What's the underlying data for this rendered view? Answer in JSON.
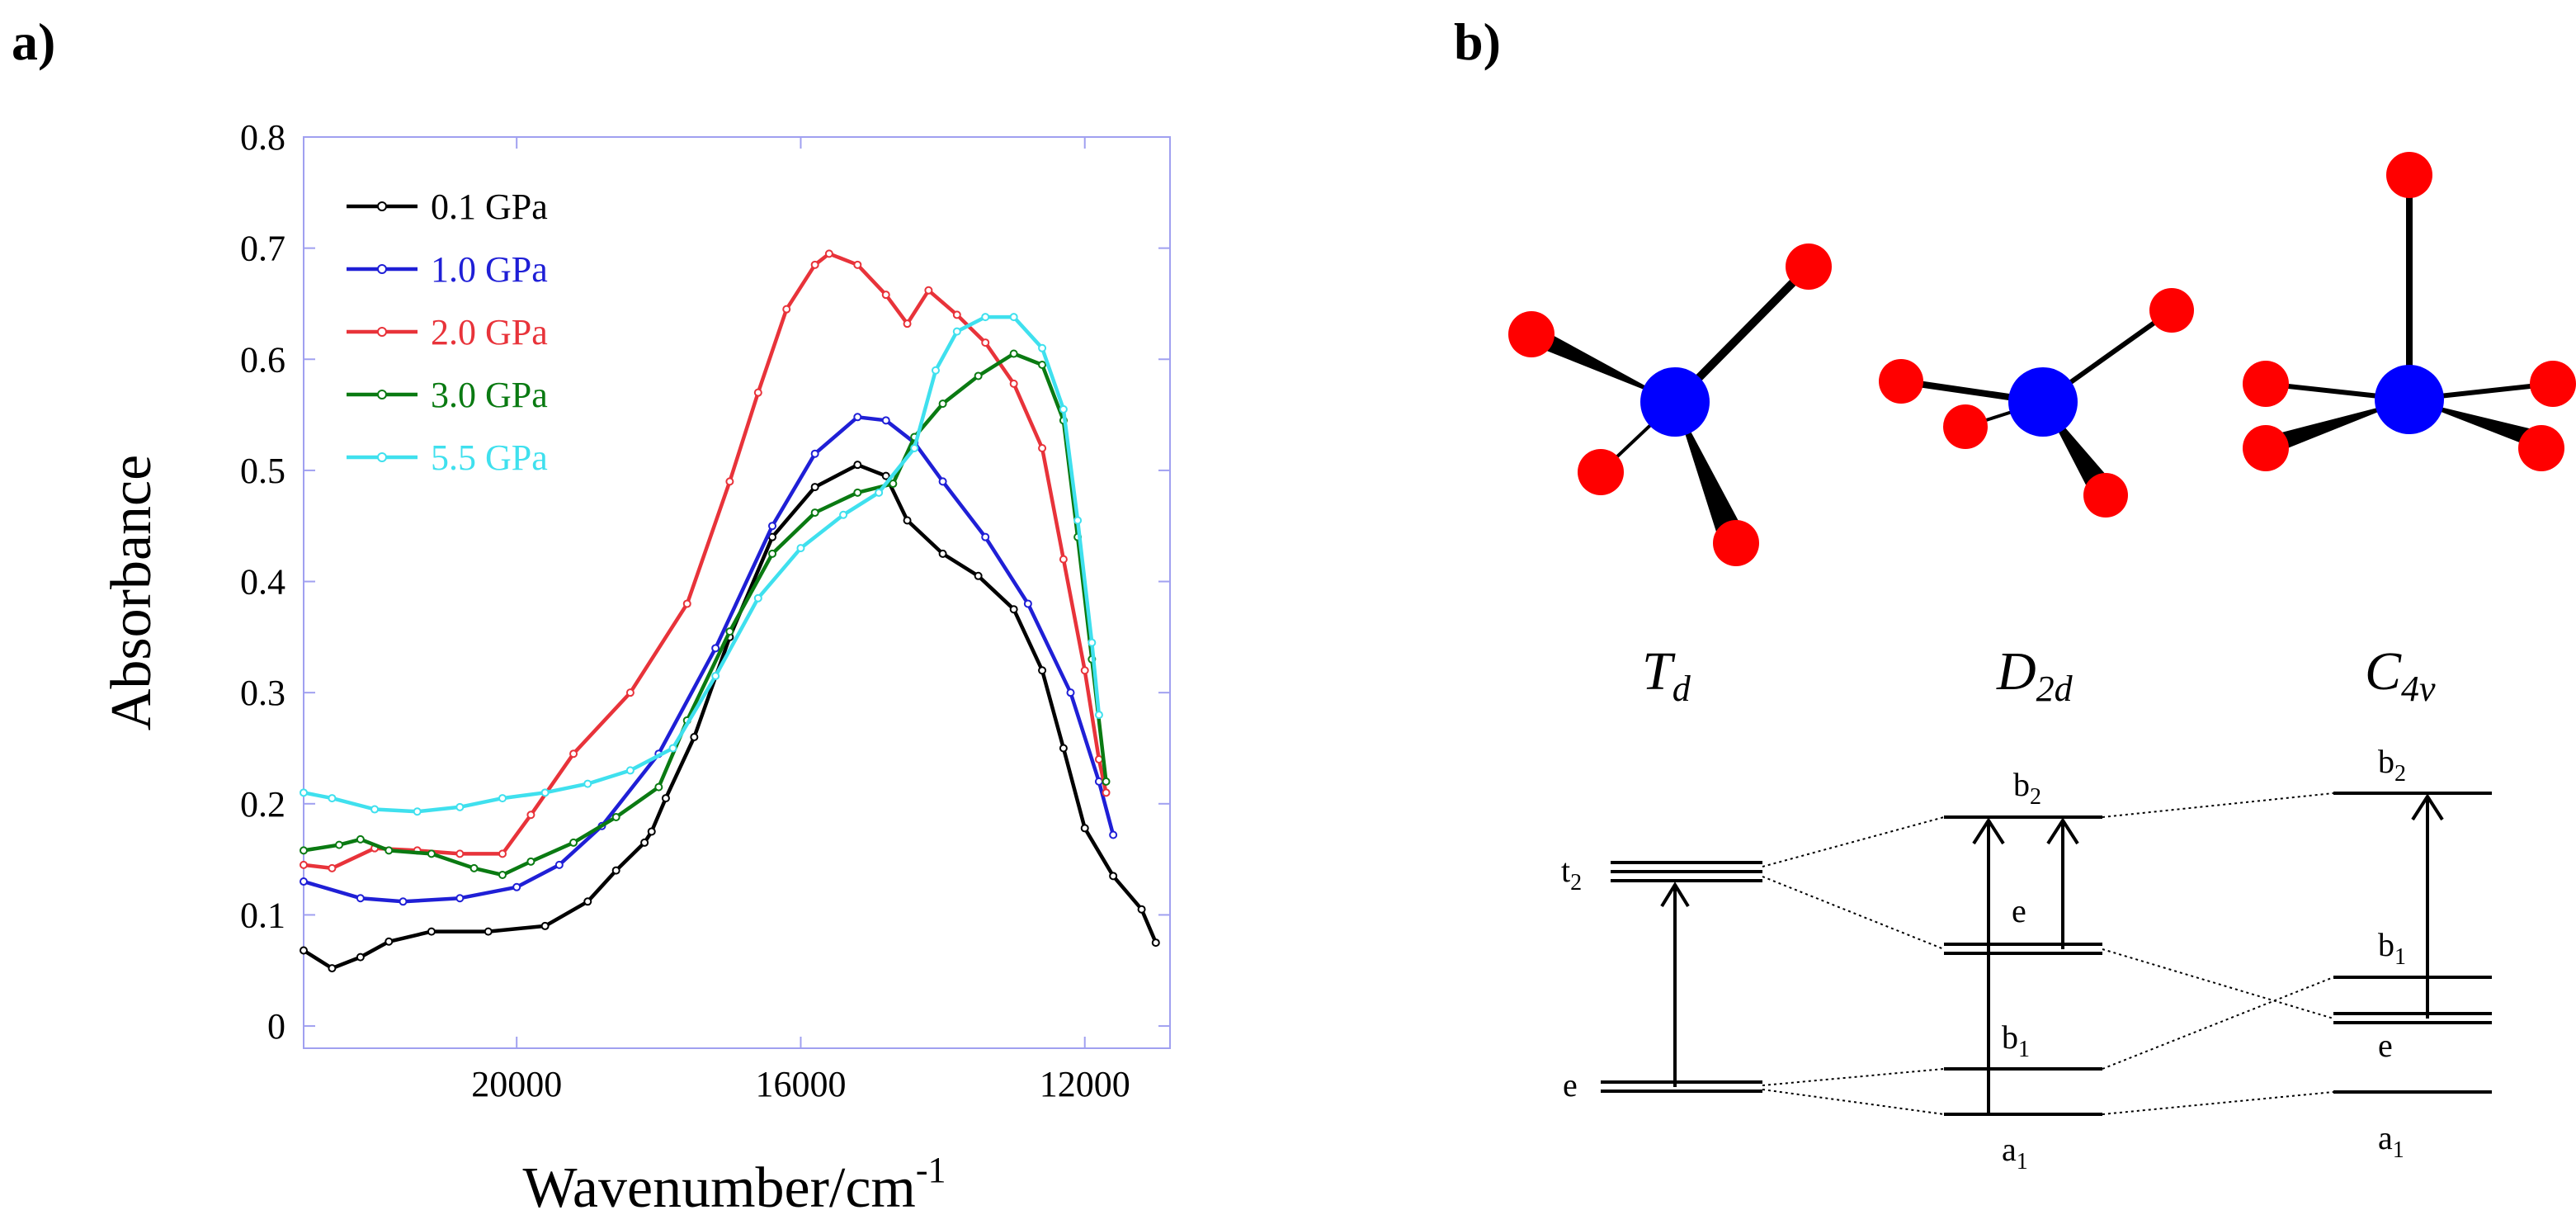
{
  "panel_a_label": "a)",
  "panel_b_label": "b)",
  "chart_data": {
    "type": "line",
    "xlabel": "Wavenumber/cm",
    "xlabel_sup": "-1",
    "ylabel": "Absorbance",
    "xlim": [
      23000,
      10800
    ],
    "ylim": [
      -0.02,
      0.8
    ],
    "x_ticks": [
      20000,
      16000,
      12000
    ],
    "x_tick_labels": [
      "20000",
      "16000",
      "12000"
    ],
    "y_ticks": [
      0,
      0.1,
      0.2,
      0.3,
      0.4,
      0.5,
      0.6,
      0.7,
      0.8
    ],
    "y_tick_labels": [
      "0",
      "0.1",
      "0.2",
      "0.3",
      "0.4",
      "0.5",
      "0.6",
      "0.7",
      "0.8"
    ],
    "legend_position": "top-left",
    "series": [
      {
        "name": "0.1 GPa",
        "color": "#000000",
        "points": [
          [
            23000,
            0.068
          ],
          [
            22600,
            0.052
          ],
          [
            22200,
            0.062
          ],
          [
            21800,
            0.076
          ],
          [
            21200,
            0.085
          ],
          [
            20400,
            0.085
          ],
          [
            19600,
            0.09
          ],
          [
            19000,
            0.112
          ],
          [
            18600,
            0.14
          ],
          [
            18200,
            0.165
          ],
          [
            18100,
            0.175
          ],
          [
            17900,
            0.205
          ],
          [
            17500,
            0.26
          ],
          [
            17000,
            0.35
          ],
          [
            16400,
            0.44
          ],
          [
            15800,
            0.485
          ],
          [
            15200,
            0.505
          ],
          [
            14800,
            0.495
          ],
          [
            14500,
            0.455
          ],
          [
            14000,
            0.425
          ],
          [
            13500,
            0.405
          ],
          [
            13000,
            0.375
          ],
          [
            12600,
            0.32
          ],
          [
            12300,
            0.25
          ],
          [
            12000,
            0.178
          ],
          [
            11600,
            0.135
          ],
          [
            11200,
            0.105
          ],
          [
            11000,
            0.075
          ]
        ]
      },
      {
        "name": "1.0 GPa",
        "color": "#1f1fd6",
        "points": [
          [
            23000,
            0.13
          ],
          [
            22200,
            0.115
          ],
          [
            21600,
            0.112
          ],
          [
            20800,
            0.115
          ],
          [
            20000,
            0.125
          ],
          [
            19400,
            0.145
          ],
          [
            18800,
            0.18
          ],
          [
            18000,
            0.245
          ],
          [
            17200,
            0.34
          ],
          [
            16400,
            0.45
          ],
          [
            15800,
            0.515
          ],
          [
            15200,
            0.548
          ],
          [
            14800,
            0.545
          ],
          [
            14400,
            0.525
          ],
          [
            14000,
            0.49
          ],
          [
            13400,
            0.44
          ],
          [
            12800,
            0.38
          ],
          [
            12200,
            0.3
          ],
          [
            11800,
            0.22
          ],
          [
            11600,
            0.172
          ]
        ]
      },
      {
        "name": "2.0 GPa",
        "color": "#e8333a",
        "points": [
          [
            23000,
            0.145
          ],
          [
            22600,
            0.142
          ],
          [
            22000,
            0.16
          ],
          [
            21400,
            0.158
          ],
          [
            20800,
            0.155
          ],
          [
            20200,
            0.155
          ],
          [
            19800,
            0.19
          ],
          [
            19200,
            0.245
          ],
          [
            18400,
            0.3
          ],
          [
            17600,
            0.38
          ],
          [
            17000,
            0.49
          ],
          [
            16600,
            0.57
          ],
          [
            16200,
            0.645
          ],
          [
            15800,
            0.685
          ],
          [
            15600,
            0.695
          ],
          [
            15200,
            0.685
          ],
          [
            14800,
            0.658
          ],
          [
            14500,
            0.632
          ],
          [
            14200,
            0.662
          ],
          [
            13800,
            0.64
          ],
          [
            13400,
            0.615
          ],
          [
            13000,
            0.578
          ],
          [
            12600,
            0.52
          ],
          [
            12300,
            0.42
          ],
          [
            12000,
            0.32
          ],
          [
            11800,
            0.24
          ],
          [
            11700,
            0.21
          ]
        ]
      },
      {
        "name": "3.0 GPa",
        "color": "#0a7a12",
        "points": [
          [
            23000,
            0.158
          ],
          [
            22500,
            0.163
          ],
          [
            22200,
            0.168
          ],
          [
            21800,
            0.158
          ],
          [
            21200,
            0.155
          ],
          [
            20600,
            0.142
          ],
          [
            20200,
            0.136
          ],
          [
            19800,
            0.148
          ],
          [
            19200,
            0.165
          ],
          [
            18600,
            0.188
          ],
          [
            18000,
            0.215
          ],
          [
            17600,
            0.275
          ],
          [
            17000,
            0.355
          ],
          [
            16400,
            0.425
          ],
          [
            15800,
            0.462
          ],
          [
            15200,
            0.48
          ],
          [
            14700,
            0.488
          ],
          [
            14400,
            0.53
          ],
          [
            14000,
            0.56
          ],
          [
            13500,
            0.585
          ],
          [
            13000,
            0.605
          ],
          [
            12600,
            0.595
          ],
          [
            12300,
            0.545
          ],
          [
            12100,
            0.44
          ],
          [
            11900,
            0.33
          ],
          [
            11700,
            0.22
          ]
        ]
      },
      {
        "name": "5.5 GPa",
        "color": "#3fe0ee",
        "points": [
          [
            23000,
            0.21
          ],
          [
            22600,
            0.205
          ],
          [
            22000,
            0.195
          ],
          [
            21400,
            0.193
          ],
          [
            20800,
            0.197
          ],
          [
            20200,
            0.205
          ],
          [
            19600,
            0.21
          ],
          [
            19000,
            0.218
          ],
          [
            18400,
            0.23
          ],
          [
            17800,
            0.25
          ],
          [
            17200,
            0.315
          ],
          [
            16600,
            0.385
          ],
          [
            16000,
            0.43
          ],
          [
            15400,
            0.46
          ],
          [
            14900,
            0.48
          ],
          [
            14400,
            0.52
          ],
          [
            14100,
            0.59
          ],
          [
            13800,
            0.625
          ],
          [
            13400,
            0.638
          ],
          [
            13000,
            0.638
          ],
          [
            12600,
            0.61
          ],
          [
            12300,
            0.555
          ],
          [
            12100,
            0.455
          ],
          [
            11900,
            0.345
          ],
          [
            11800,
            0.28
          ]
        ]
      }
    ]
  },
  "symmetry_labels": [
    {
      "main": "T",
      "sub": "d"
    },
    {
      "main": "D",
      "sub": "2d"
    },
    {
      "main": "C",
      "sub": "4v"
    }
  ],
  "energy_levels": {
    "t2": {
      "main": "t",
      "sub": "2"
    },
    "e_td": "e",
    "b2_d2d": {
      "main": "b",
      "sub": "2"
    },
    "e_d2d": "e",
    "b1_d2d": {
      "main": "b",
      "sub": "1"
    },
    "a1_d2d": {
      "main": "a",
      "sub": "1"
    },
    "b2_c4v": {
      "main": "b",
      "sub": "2"
    },
    "b1_c4v": {
      "main": "b",
      "sub": "1"
    },
    "e_c4v": "e",
    "a1_c4v": {
      "main": "a",
      "sub": "1"
    }
  },
  "colors": {
    "ligand": "#ff0000",
    "metal": "#0000ff",
    "frame": "#a0a0f0"
  }
}
